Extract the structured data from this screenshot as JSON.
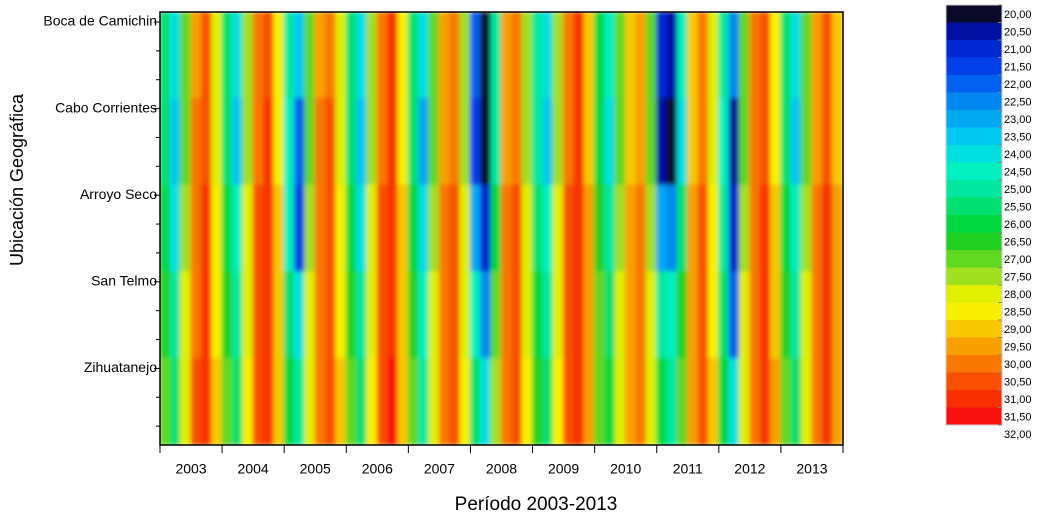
{
  "chart_data": {
    "type": "heatmap",
    "x_label": "Período 2003-2013",
    "y_label": "Ubicación Geográfica",
    "categories": [
      "2003",
      "2004",
      "2005",
      "2006",
      "2007",
      "2008",
      "2009",
      "2010",
      "2011",
      "2012",
      "2013"
    ],
    "rows": [
      "Boca de Camichin",
      "Cabo Corrientes",
      "Arroyo Seco",
      "San Telmo",
      "Zihuatanejo"
    ],
    "z": [
      [
        25.5,
        24,
        27,
        29.5,
        30.5,
        28,
        25.5,
        24,
        27.5,
        30,
        30.5,
        28.5,
        25,
        23.5,
        27,
        29.5,
        30,
        28,
        25.5,
        24,
        27.5,
        30,
        31,
        28.5,
        25.5,
        24,
        27,
        29.5,
        30,
        27.5,
        22,
        20,
        25,
        29.5,
        30,
        27.5,
        25,
        24,
        27.5,
        30,
        31,
        29,
        26,
        24.5,
        27,
        29,
        29.5,
        27,
        21,
        20.5,
        24.5,
        29,
        30,
        28,
        25,
        22.5,
        27,
        30,
        30.5,
        28.5,
        25.5,
        24,
        27,
        29.5,
        30.5,
        29
      ],
      [
        25.5,
        23.5,
        27,
        30,
        30.5,
        28,
        25.5,
        23.5,
        27.5,
        30,
        31,
        28.5,
        24.5,
        22,
        27,
        30,
        30.5,
        28,
        25.5,
        23.5,
        27.5,
        30,
        31,
        28.5,
        25.5,
        23,
        27,
        29.5,
        30,
        27.5,
        21.5,
        20,
        25,
        29.5,
        30,
        27.5,
        25,
        23.5,
        27.5,
        30,
        31,
        29,
        26,
        24,
        27,
        29,
        29.5,
        27,
        20.5,
        20,
        24,
        29,
        30,
        28,
        24.5,
        20.5,
        27,
        30,
        30.5,
        28.5,
        25.5,
        23.5,
        27,
        29.5,
        30.5,
        29
      ],
      [
        26,
        24,
        27.5,
        30,
        31,
        28.5,
        26,
        24.5,
        28,
        30.5,
        31,
        29,
        24.5,
        21.5,
        27.5,
        30,
        30.5,
        28.5,
        26,
        24,
        28,
        30.5,
        31,
        29,
        26,
        24,
        27.5,
        30,
        30.5,
        28,
        23,
        21,
        26,
        30,
        30.5,
        28,
        25.5,
        24.5,
        28,
        30.5,
        31,
        29.5,
        26.5,
        25,
        27.5,
        29.5,
        30,
        27.5,
        23,
        22.5,
        25.5,
        29.5,
        30.5,
        28.5,
        25,
        21,
        27.5,
        30,
        31,
        29,
        26,
        24.5,
        27.5,
        30,
        31,
        29.5
      ],
      [
        26.5,
        25,
        28,
        30,
        31,
        28.5,
        26.5,
        25,
        28,
        30.5,
        31,
        29,
        25.5,
        24,
        28,
        30,
        30.5,
        28.5,
        26.5,
        25,
        28,
        30.5,
        31,
        29,
        26.5,
        24.5,
        28,
        30,
        30.5,
        28,
        24.5,
        22.5,
        27,
        30,
        30.5,
        28,
        26,
        25,
        28,
        30.5,
        31,
        29.5,
        27,
        25.5,
        28,
        29.5,
        30,
        28,
        25,
        24.5,
        26.5,
        29.5,
        30.5,
        28.5,
        25.5,
        22,
        28,
        30,
        31,
        29,
        26.5,
        25,
        28,
        30,
        31,
        29.5
      ],
      [
        27,
        25.5,
        28,
        30.5,
        31,
        29,
        27,
        25.5,
        28.5,
        30.5,
        31,
        29,
        26,
        25,
        28,
        30,
        30.5,
        29,
        27,
        25.5,
        28.5,
        30.5,
        31.5,
        29,
        27,
        25,
        28,
        30,
        30.5,
        28.5,
        25.5,
        24,
        27.5,
        30,
        30.5,
        28.5,
        26.5,
        25.5,
        28.5,
        30.5,
        31,
        29.5,
        27,
        26,
        28,
        29.5,
        30,
        28,
        26,
        25,
        27,
        29.5,
        30.5,
        29,
        26,
        24,
        28,
        30,
        31,
        29.5,
        27,
        25.5,
        28,
        30,
        31,
        29.5
      ]
    ],
    "zlim": [
      20,
      32
    ],
    "zticks": [
      {
        "value": 20,
        "label": "20,00"
      },
      {
        "value": 20.5,
        "label": "20,50"
      },
      {
        "value": 21,
        "label": "21,00"
      },
      {
        "value": 21.5,
        "label": "21,50"
      },
      {
        "value": 22,
        "label": "22,00"
      },
      {
        "value": 22.5,
        "label": "22,50"
      },
      {
        "value": 23,
        "label": "23,00"
      },
      {
        "value": 23.5,
        "label": "23,50"
      },
      {
        "value": 24,
        "label": "24,00"
      },
      {
        "value": 24.5,
        "label": "24,50"
      },
      {
        "value": 25,
        "label": "25,00"
      },
      {
        "value": 25.5,
        "label": "25,50"
      },
      {
        "value": 26,
        "label": "26,00"
      },
      {
        "value": 26.5,
        "label": "26,50"
      },
      {
        "value": 27,
        "label": "27,00"
      },
      {
        "value": 27.5,
        "label": "27,50"
      },
      {
        "value": 28,
        "label": "28,00"
      },
      {
        "value": 28.5,
        "label": "28,50"
      },
      {
        "value": 29,
        "label": "29,00"
      },
      {
        "value": 29.5,
        "label": "29,50"
      },
      {
        "value": 30,
        "label": "30,00"
      },
      {
        "value": 30.5,
        "label": "30,50"
      },
      {
        "value": 31,
        "label": "31,00"
      },
      {
        "value": 31.5,
        "label": "31,50"
      },
      {
        "value": 32,
        "label": "32,00"
      }
    ],
    "colors": [
      "#0a0a28",
      "#0010a0",
      "#0028d0",
      "#0040e8",
      "#0060f0",
      "#0088f0",
      "#00a8f0",
      "#00c8f0",
      "#00e0e0",
      "#00f0c0",
      "#00e8a0",
      "#00e070",
      "#00d840",
      "#20d020",
      "#60d820",
      "#a0e020",
      "#e0f000",
      "#f8f000",
      "#f8c800",
      "#f8a000",
      "#f87800",
      "#f85000",
      "#f83000",
      "#f81010"
    ]
  }
}
